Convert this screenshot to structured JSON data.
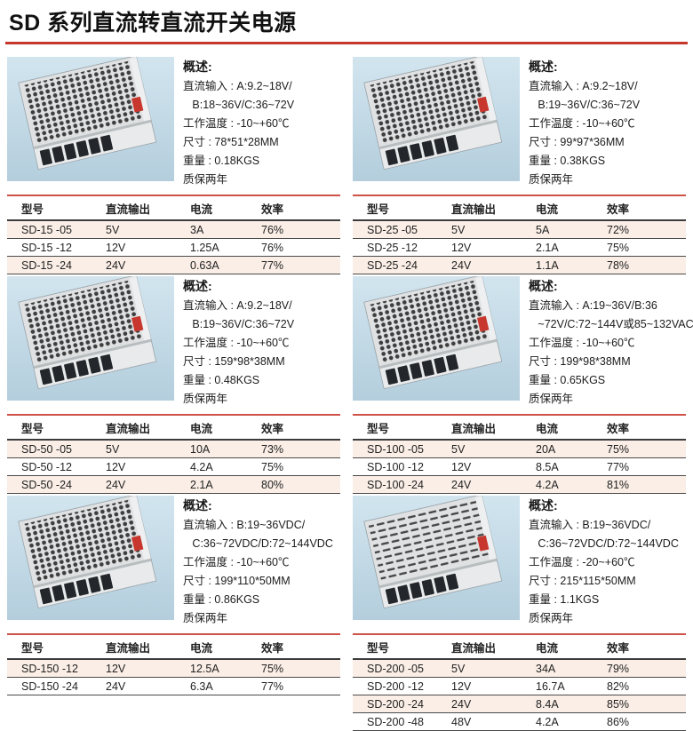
{
  "page": {
    "title": "SD 系列直流转直流开关电源"
  },
  "accent_colors": {
    "title_rule_red": "#c5362b",
    "table_top_red": "#cf5148",
    "row_stripe": "#faeee6",
    "photo_bg": "#c7dde9"
  },
  "overview_label": "概述:",
  "table_headers": {
    "model": "型号",
    "output": "直流输出",
    "current": "电流",
    "efficiency": "效率"
  },
  "sections": [
    {
      "model_series": "SD-15",
      "photo": "perforated-metal-case-psu",
      "overview_lines": [
        "直流输入 : A:9.2~18V/",
        "   B:18~36V/C:36~72V",
        "工作温度 : -10~+60℃",
        "尺寸 : 78*51*28MM",
        "重量 : 0.18KGS",
        "质保两年"
      ],
      "rows": [
        {
          "model": "SD-15 -05",
          "output": "5V",
          "current": "3A",
          "efficiency": "76%"
        },
        {
          "model": "SD-15 -12",
          "output": "12V",
          "current": "1.25A",
          "efficiency": "76%"
        },
        {
          "model": "SD-15 -24",
          "output": "24V",
          "current": "0.63A",
          "efficiency": "77%"
        }
      ]
    },
    {
      "model_series": "SD-25",
      "photo": "perforated-metal-case-psu",
      "overview_lines": [
        "直流输入 : A:9.2~18V/",
        "   B:19~36V/C:36~72V",
        "工作温度 : -10~+60℃",
        "尺寸 : 99*97*36MM",
        "重量 : 0.38KGS",
        "质保两年"
      ],
      "rows": [
        {
          "model": "SD-25 -05",
          "output": "5V",
          "current": "5A",
          "efficiency": "72%"
        },
        {
          "model": "SD-25 -12",
          "output": "12V",
          "current": "2.1A",
          "efficiency": "75%"
        },
        {
          "model": "SD-25 -24",
          "output": "24V",
          "current": "1.1A",
          "efficiency": "78%"
        }
      ]
    },
    {
      "model_series": "SD-50",
      "photo": "perforated-metal-case-psu",
      "overview_lines": [
        "直流输入 : A:9.2~18V/",
        "   B:19~36V/C:36~72V",
        "工作温度 : -10~+60℃",
        "尺寸 : 159*98*38MM",
        "重量 : 0.48KGS",
        "质保两年"
      ],
      "rows": [
        {
          "model": "SD-50 -05",
          "output": "5V",
          "current": "10A",
          "efficiency": "73%"
        },
        {
          "model": "SD-50 -12",
          "output": "12V",
          "current": "4.2A",
          "efficiency": "75%"
        },
        {
          "model": "SD-50 -24",
          "output": "24V",
          "current": "2.1A",
          "efficiency": "80%"
        }
      ]
    },
    {
      "model_series": "SD-100",
      "photo": "perforated-metal-case-psu",
      "overview_lines": [
        "直流输入 : A:19~36V/B:36",
        "   ~72V/C:72~144V或85~132VAC",
        "工作温度 : -10~+60℃",
        "尺寸 : 199*98*38MM",
        "重量 : 0.65KGS",
        "质保两年"
      ],
      "rows": [
        {
          "model": "SD-100 -05",
          "output": "5V",
          "current": "20A",
          "efficiency": "75%"
        },
        {
          "model": "SD-100 -12",
          "output": "12V",
          "current": "8.5A",
          "efficiency": "77%"
        },
        {
          "model": "SD-100 -24",
          "output": "24V",
          "current": "4.2A",
          "efficiency": "81%"
        }
      ]
    },
    {
      "model_series": "SD-150",
      "photo": "perforated-metal-case-psu",
      "overview_lines": [
        "直流输入 : B:19~36VDC/",
        "   C:36~72VDC/D:72~144VDC",
        "工作温度 : -10~+60℃",
        "尺寸 : 199*110*50MM",
        "重量 : 0.86KGS",
        "质保两年"
      ],
      "rows": [
        {
          "model": "SD-150 -12",
          "output": "12V",
          "current": "12.5A",
          "efficiency": "75%"
        },
        {
          "model": "SD-150 -24",
          "output": "24V",
          "current": "6.3A",
          "efficiency": "77%"
        }
      ]
    },
    {
      "model_series": "SD-200",
      "photo": "slotted-metal-case-psu",
      "overview_lines": [
        "直流输入 : B:19~36VDC/",
        "   C:36~72VDC/D:72~144VDC",
        "工作温度 : -20~+60℃",
        "尺寸 : 215*115*50MM",
        "重量 : 1.1KGS",
        "质保两年"
      ],
      "rows": [
        {
          "model": "SD-200 -05",
          "output": "5V",
          "current": "34A",
          "efficiency": "79%"
        },
        {
          "model": "SD-200 -12",
          "output": "12V",
          "current": "16.7A",
          "efficiency": "82%"
        },
        {
          "model": "SD-200 -24",
          "output": "24V",
          "current": "8.4A",
          "efficiency": "85%"
        },
        {
          "model": "SD-200 -48",
          "output": "48V",
          "current": "4.2A",
          "efficiency": "86%"
        }
      ]
    }
  ]
}
